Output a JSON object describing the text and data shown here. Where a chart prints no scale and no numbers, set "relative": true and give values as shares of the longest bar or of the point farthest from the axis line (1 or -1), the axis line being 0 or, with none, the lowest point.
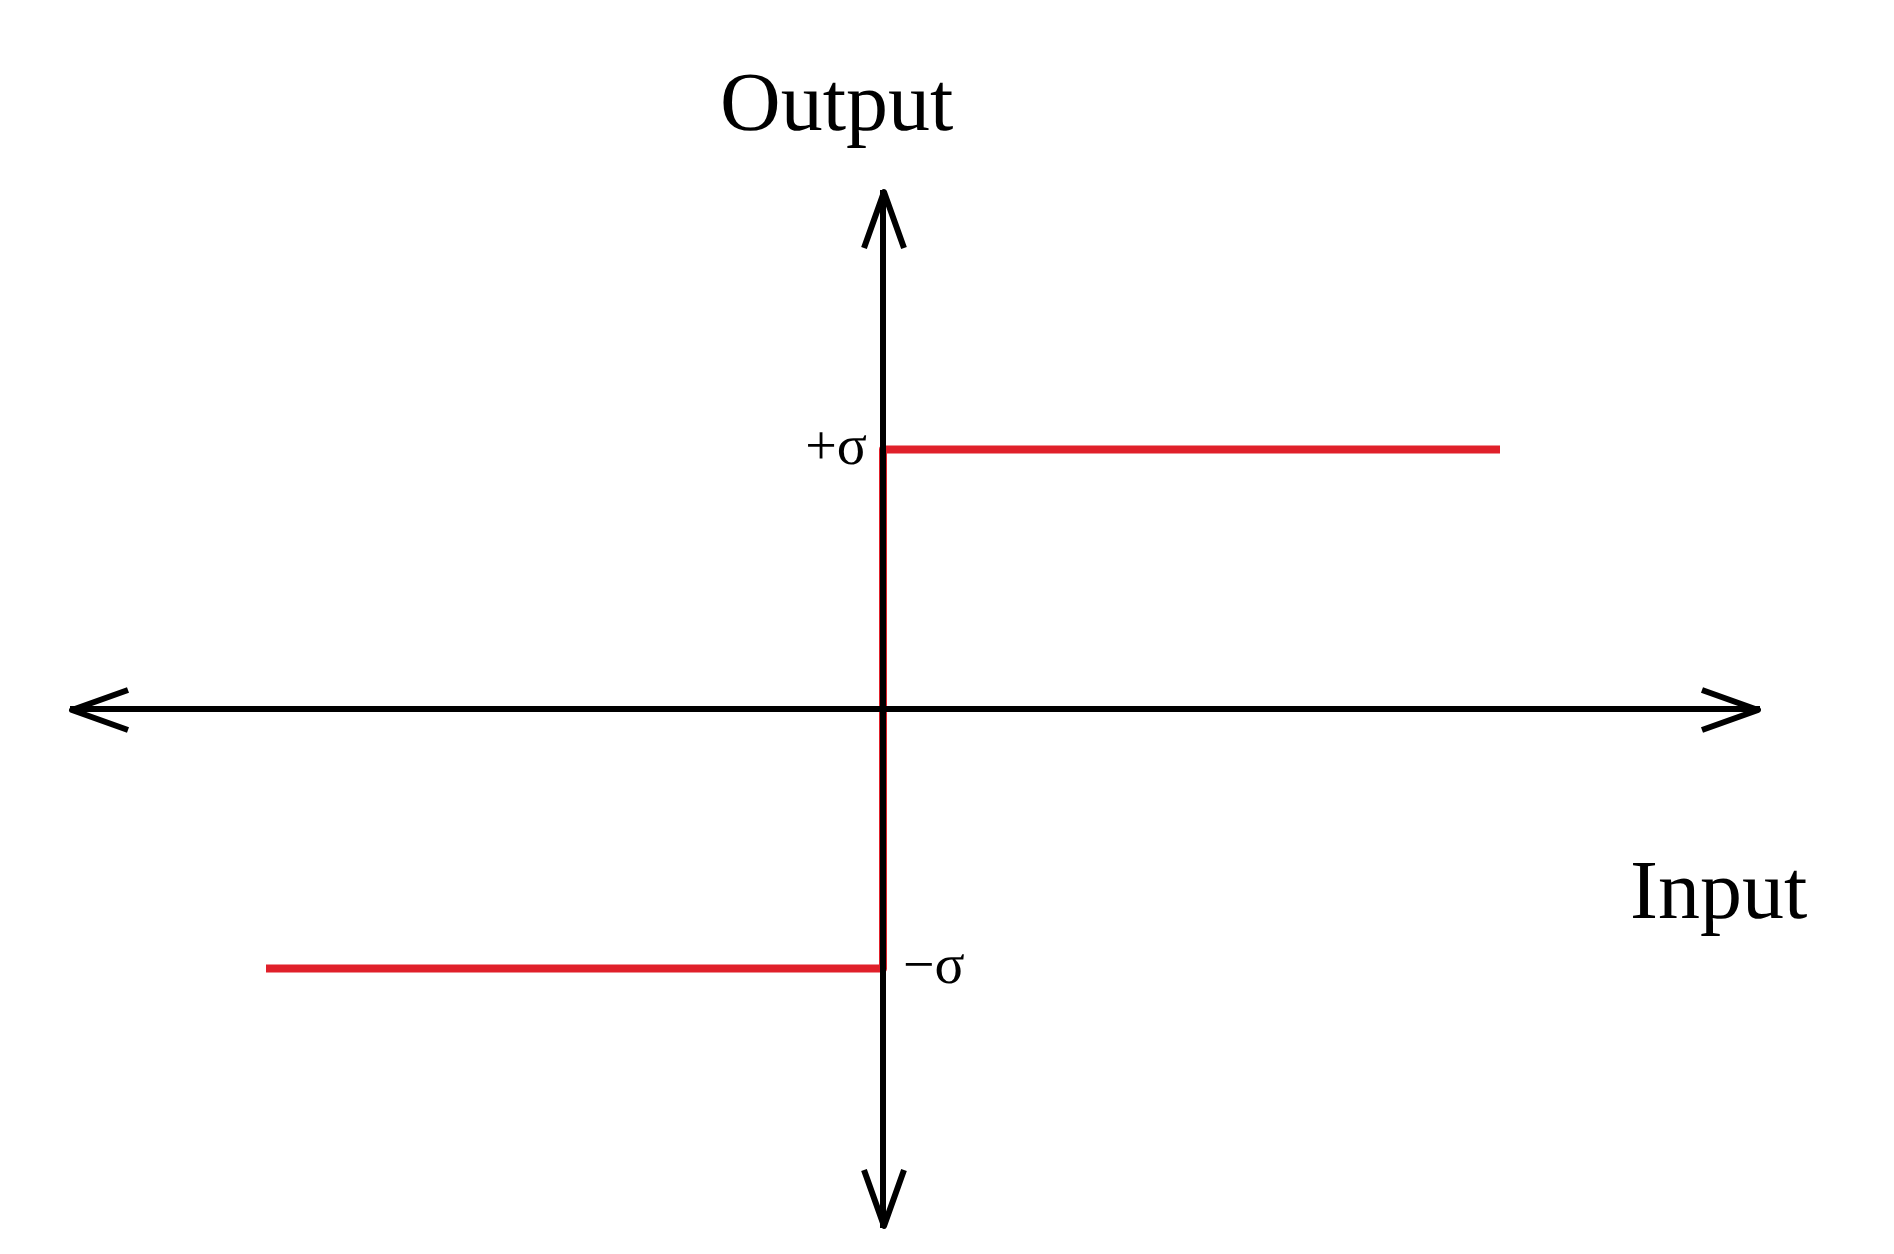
{
  "chart_data": {
    "type": "step",
    "xlabel": "Input",
    "ylabel": "Output",
    "relative": true,
    "categories": [
      null,
      null,
      null,
      null
    ],
    "series": [
      {
        "color": "#e0202a",
        "values": [
          -1,
          -1,
          1,
          1
        ]
      }
    ],
    "annotations": [
      "+σ",
      "−σ"
    ],
    "grid": false,
    "legend": false,
    "marker": "none",
    "line_style": "solid",
    "tick_labels": false
  }
}
